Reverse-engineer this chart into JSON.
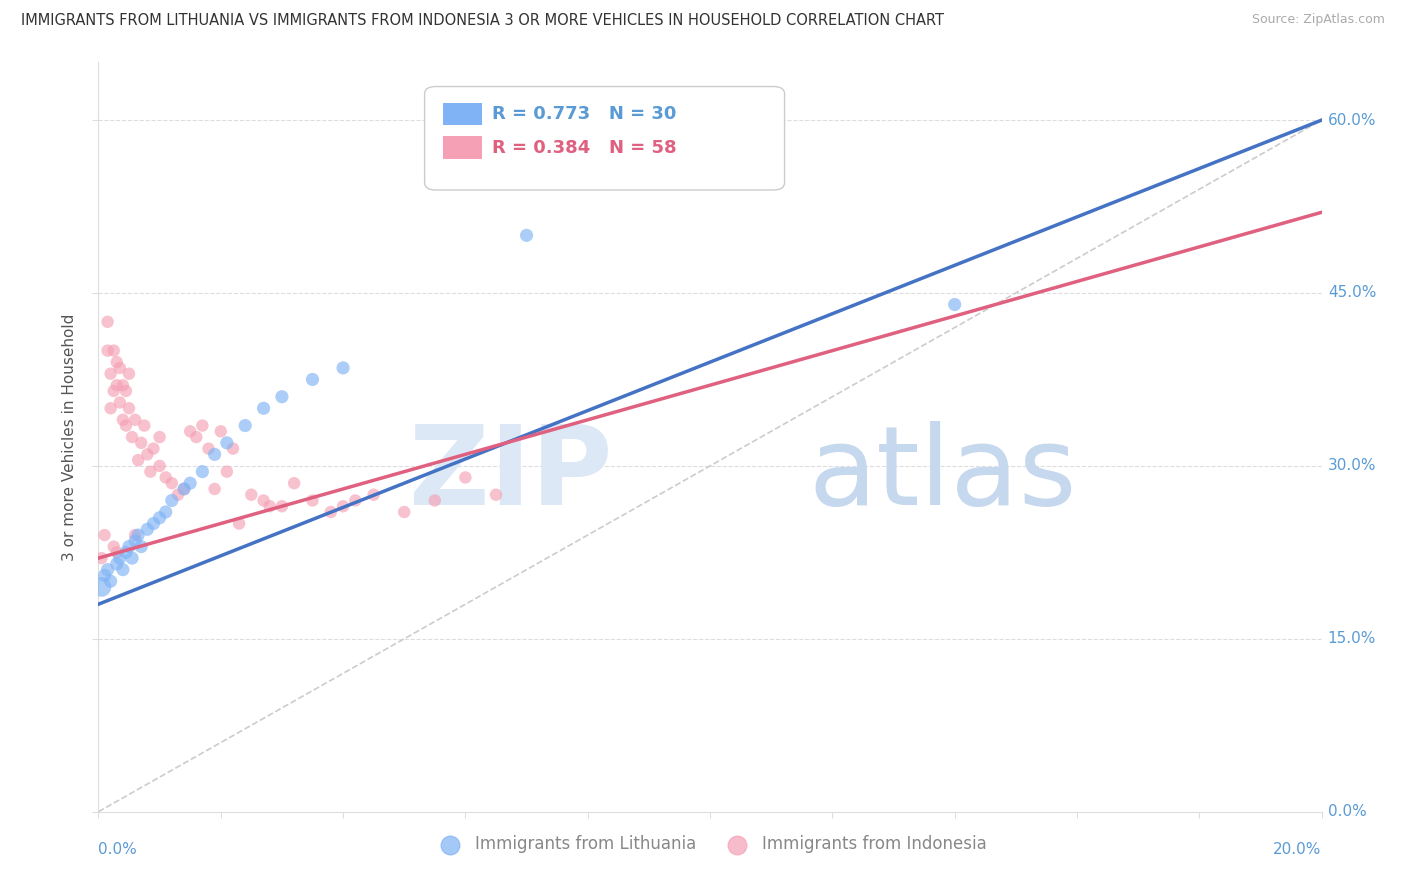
{
  "title": "IMMIGRANTS FROM LITHUANIA VS IMMIGRANTS FROM INDONESIA 3 OR MORE VEHICLES IN HOUSEHOLD CORRELATION CHART",
  "source": "Source: ZipAtlas.com",
  "ylabel": "3 or more Vehicles in Household",
  "ytick_labels": [
    "0.0%",
    "15.0%",
    "30.0%",
    "45.0%",
    "60.0%"
  ],
  "ytick_values": [
    0.0,
    15.0,
    30.0,
    45.0,
    60.0
  ],
  "xlim": [
    0.0,
    20.0
  ],
  "ylim": [
    0.0,
    65.0
  ],
  "legend_r_lithuania": "R = 0.773",
  "legend_n_lithuania": "N = 30",
  "legend_r_indonesia": "R = 0.384",
  "legend_n_indonesia": "N = 58",
  "color_lithuania": "#7fb3f5",
  "color_indonesia": "#f5a0b5",
  "color_trendline_lithuania": "#4472c4",
  "color_trendline_indonesia": "#e06080",
  "color_trendline_dashed": "#cccccc",
  "background_color": "#ffffff",
  "lithuania_x": [
    0.05,
    0.1,
    0.15,
    0.2,
    0.3,
    0.35,
    0.4,
    0.45,
    0.5,
    0.55,
    0.6,
    0.65,
    0.7,
    0.8,
    0.9,
    1.0,
    1.1,
    1.2,
    1.4,
    1.5,
    1.7,
    1.9,
    2.1,
    2.4,
    2.7,
    3.0,
    3.5,
    4.0,
    7.0,
    14.0
  ],
  "lithuania_y": [
    19.5,
    20.5,
    21.0,
    20.0,
    21.5,
    22.0,
    21.0,
    22.5,
    23.0,
    22.0,
    23.5,
    24.0,
    23.0,
    24.5,
    25.0,
    25.5,
    26.0,
    27.0,
    28.0,
    28.5,
    29.5,
    31.0,
    32.0,
    33.5,
    35.0,
    36.0,
    37.5,
    38.5,
    50.0,
    44.0
  ],
  "lithuania_sizes": [
    200,
    90,
    90,
    90,
    90,
    90,
    90,
    90,
    90,
    90,
    90,
    90,
    90,
    90,
    90,
    90,
    90,
    90,
    90,
    90,
    90,
    90,
    90,
    90,
    90,
    90,
    90,
    90,
    90,
    90
  ],
  "indonesia_x": [
    0.05,
    0.1,
    0.15,
    0.15,
    0.2,
    0.2,
    0.25,
    0.25,
    0.3,
    0.3,
    0.35,
    0.35,
    0.4,
    0.4,
    0.45,
    0.45,
    0.5,
    0.5,
    0.55,
    0.6,
    0.65,
    0.7,
    0.75,
    0.8,
    0.85,
    0.9,
    1.0,
    1.0,
    1.1,
    1.2,
    1.3,
    1.4,
    1.5,
    1.6,
    1.7,
    1.8,
    1.9,
    2.0,
    2.1,
    2.2,
    2.5,
    2.7,
    3.0,
    3.2,
    3.5,
    4.0,
    4.5,
    5.0,
    5.5,
    6.0,
    6.5,
    3.8,
    4.2,
    0.6,
    0.3,
    0.25,
    2.3,
    2.8
  ],
  "indonesia_y": [
    22.0,
    24.0,
    40.0,
    42.5,
    38.0,
    35.0,
    36.5,
    40.0,
    39.0,
    37.0,
    35.5,
    38.5,
    37.0,
    34.0,
    36.5,
    33.5,
    35.0,
    38.0,
    32.5,
    34.0,
    30.5,
    32.0,
    33.5,
    31.0,
    29.5,
    31.5,
    30.0,
    32.5,
    29.0,
    28.5,
    27.5,
    28.0,
    33.0,
    32.5,
    33.5,
    31.5,
    28.0,
    33.0,
    29.5,
    31.5,
    27.5,
    27.0,
    26.5,
    28.5,
    27.0,
    26.5,
    27.5,
    26.0,
    27.0,
    29.0,
    27.5,
    26.0,
    27.0,
    24.0,
    22.5,
    23.0,
    25.0,
    26.5
  ],
  "trendline_lith_x0": 0.0,
  "trendline_lith_y0": 18.0,
  "trendline_lith_x1": 20.0,
  "trendline_lith_y1": 60.0,
  "trendline_indo_x0": 0.0,
  "trendline_indo_y0": 22.0,
  "trendline_indo_x1": 20.0,
  "trendline_indo_y1": 52.0,
  "figsize": [
    14.06,
    8.92
  ],
  "dpi": 100
}
